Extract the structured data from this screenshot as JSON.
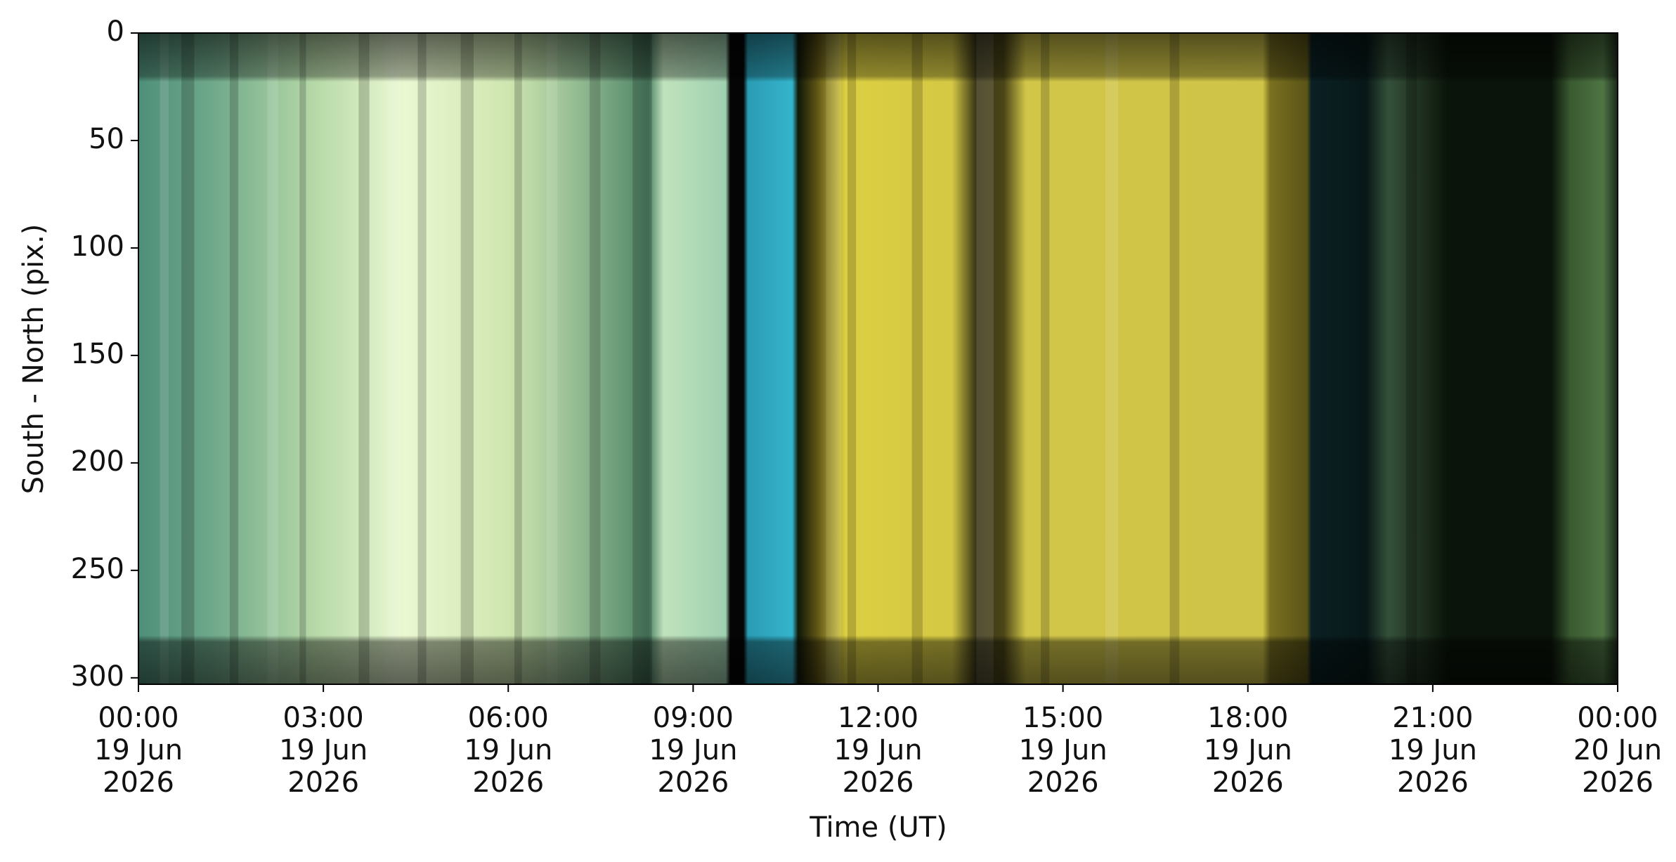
{
  "chart_data": {
    "type": "image",
    "xlabel": "Time (UT)",
    "ylabel": "South - North (pix.)",
    "xlim": [
      "2026-06-19T00:00",
      "2026-06-20T00:00"
    ],
    "xticks": [
      {
        "value": "2026-06-19T00:00",
        "label": "00:00\n19 Jun\n2026"
      },
      {
        "value": "2026-06-19T03:00",
        "label": "03:00\n19 Jun\n2026"
      },
      {
        "value": "2026-06-19T06:00",
        "label": "06:00\n19 Jun\n2026"
      },
      {
        "value": "2026-06-19T09:00",
        "label": "09:00\n19 Jun\n2026"
      },
      {
        "value": "2026-06-19T12:00",
        "label": "12:00\n19 Jun\n2026"
      },
      {
        "value": "2026-06-19T15:00",
        "label": "15:00\n19 Jun\n2026"
      },
      {
        "value": "2026-06-19T18:00",
        "label": "18:00\n19 Jun\n2026"
      },
      {
        "value": "2026-06-19T21:00",
        "label": "21:00\n19 Jun\n2026"
      },
      {
        "value": "2026-06-20T00:00",
        "label": "00:00\n20 Jun\n2026"
      }
    ],
    "ylim": [
      303,
      0
    ],
    "yticks": [
      0,
      50,
      100,
      150,
      200,
      250,
      300
    ]
  }
}
